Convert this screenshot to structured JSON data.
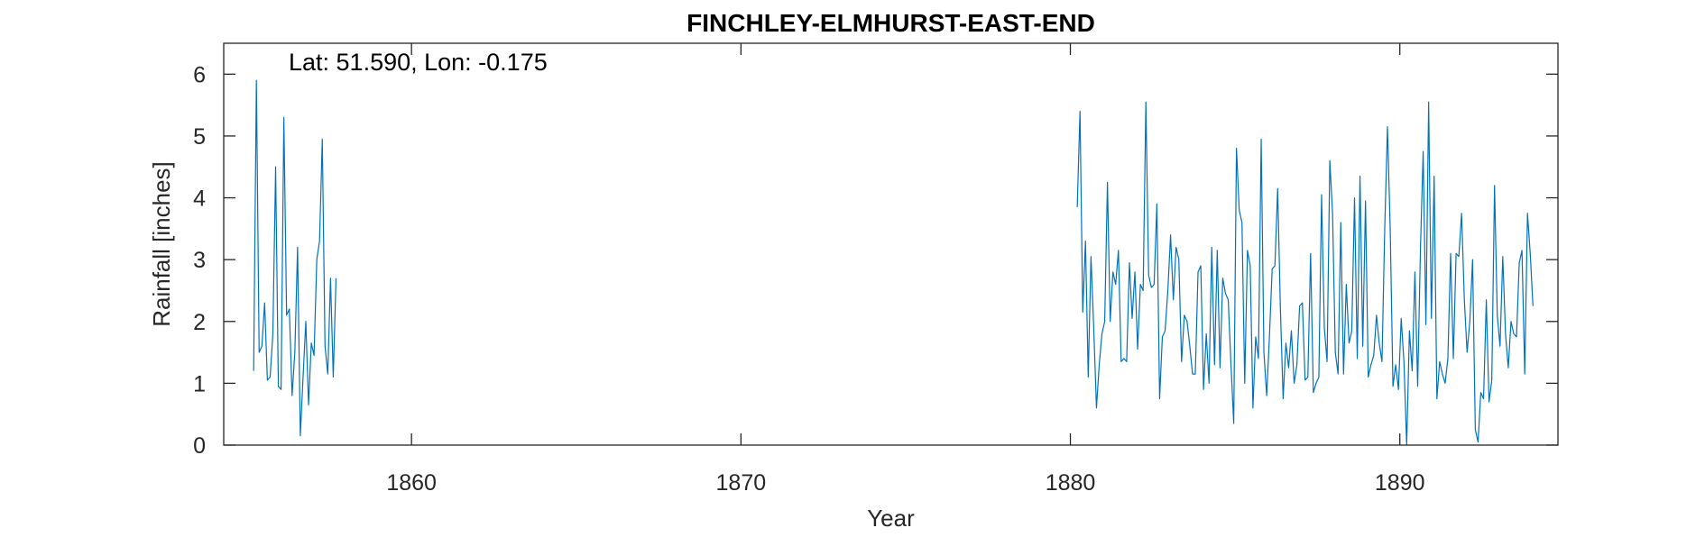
{
  "chart_data": {
    "type": "line",
    "title": "FINCHLEY-ELMHURST-EAST-END",
    "annotation": "Lat: 51.590, Lon: -0.175",
    "xlabel": "Year",
    "ylabel": "Rainfall [inches]",
    "xlim": [
      1854.3,
      1894.8
    ],
    "ylim": [
      0,
      6.5
    ],
    "xticks": [
      1860,
      1870,
      1880,
      1890
    ],
    "xtick_labels": [
      "1860",
      "1870",
      "1880",
      "1890"
    ],
    "yticks": [
      0,
      1,
      2,
      3,
      4,
      5,
      6
    ],
    "ytick_labels": [
      "0",
      "1",
      "2",
      "3",
      "4",
      "5",
      "6"
    ],
    "grid": false,
    "box": true,
    "series": [
      {
        "color": "#0072BD",
        "segments": [
          {
            "start_year": 1855.2083,
            "step": 0.0833333,
            "values": [
              1.2,
              5.9,
              1.5,
              1.6,
              2.3,
              1.05,
              1.1,
              1.8,
              4.5,
              0.95,
              0.9,
              5.3,
              2.1,
              2.2,
              0.8,
              1.5,
              3.2,
              0.15,
              1.1,
              2.0,
              0.65,
              1.65,
              1.45,
              3.0,
              3.3,
              4.95,
              1.6,
              1.15,
              2.7,
              1.1,
              2.7
            ]
          },
          {
            "start_year": 1880.2083,
            "step": 0.0833333,
            "values": [
              3.85,
              5.4,
              2.15,
              3.3,
              1.1,
              3.05,
              1.9,
              0.6,
              1.3,
              1.8,
              2.0,
              4.25,
              2.0,
              2.8,
              2.6,
              3.15,
              1.35,
              1.4,
              1.35,
              2.95,
              2.05,
              2.8,
              1.55,
              2.6,
              2.5,
              5.55,
              2.75,
              2.55,
              2.6,
              3.9,
              0.75,
              1.75,
              1.85,
              2.5,
              3.4,
              2.35,
              3.2,
              3.0,
              1.35,
              2.1,
              2.0,
              1.6,
              1.15,
              1.15,
              2.8,
              2.9,
              0.9,
              1.8,
              1.0,
              3.2,
              1.3,
              3.15,
              1.25,
              2.7,
              2.45,
              2.35,
              1.3,
              0.35,
              4.8,
              3.8,
              3.6,
              1.0,
              3.15,
              2.9,
              0.6,
              1.75,
              1.4,
              4.95,
              1.5,
              0.8,
              1.75,
              2.85,
              2.9,
              4.15,
              2.2,
              0.75,
              1.65,
              1.25,
              1.85,
              1.0,
              1.3,
              2.25,
              2.3,
              1.05,
              1.1,
              3.1,
              0.85,
              1.0,
              1.1,
              4.05,
              1.9,
              1.35,
              4.6,
              3.75,
              1.5,
              1.15,
              3.6,
              1.15,
              2.6,
              1.65,
              1.85,
              4.0,
              1.4,
              4.35,
              1.6,
              3.95,
              1.1,
              1.3,
              1.45,
              2.1,
              1.65,
              1.35,
              3.5,
              5.15,
              3.5,
              0.95,
              1.3,
              0.9,
              2.05,
              1.35,
              0.0,
              1.85,
              1.2,
              2.8,
              0.95,
              3.15,
              4.75,
              1.95,
              5.55,
              2.05,
              4.35,
              0.75,
              1.35,
              1.15,
              1.0,
              1.4,
              3.1,
              1.4,
              3.1,
              3.05,
              3.75,
              2.35,
              1.5,
              2.0,
              3.0,
              0.25,
              0.05,
              0.85,
              0.75,
              2.35,
              0.7,
              1.05,
              4.2,
              2.1,
              1.6,
              3.05,
              1.8,
              1.25,
              2.0,
              1.8,
              1.75,
              2.95,
              3.15,
              1.15,
              3.75,
              3.1,
              2.25
            ]
          }
        ]
      }
    ]
  }
}
